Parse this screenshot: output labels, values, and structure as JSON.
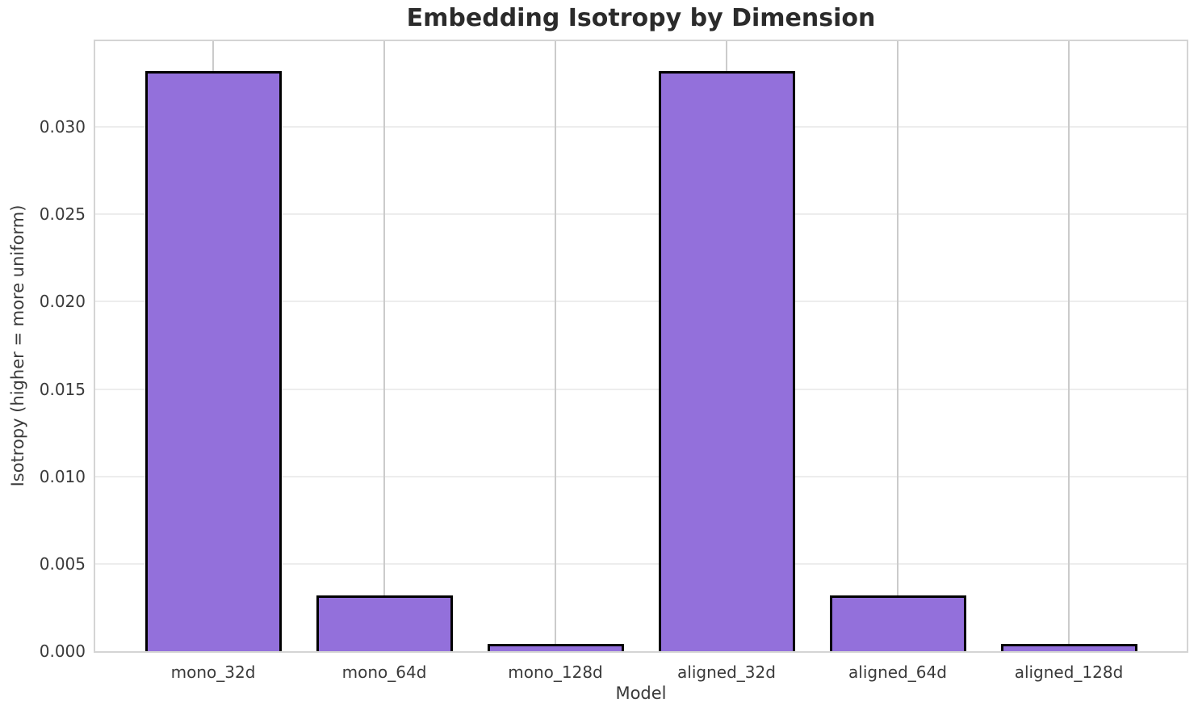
{
  "chart_data": {
    "type": "bar",
    "title": "Embedding Isotropy by Dimension",
    "xlabel": "Model",
    "ylabel": "Isotropy (higher = more uniform)",
    "categories": [
      "mono_32d",
      "mono_64d",
      "mono_128d",
      "aligned_32d",
      "aligned_64d",
      "aligned_128d"
    ],
    "values": [
      0.0332,
      0.0032,
      0.0004,
      0.0332,
      0.0032,
      0.0004
    ],
    "ylim": [
      0,
      0.0349
    ],
    "yticks": [
      0.0,
      0.005,
      0.01,
      0.015,
      0.02,
      0.025,
      0.03
    ],
    "ytick_labels": [
      "0.000",
      "0.005",
      "0.010",
      "0.015",
      "0.020",
      "0.025",
      "0.030"
    ],
    "grid": true,
    "legend": null,
    "colors": {
      "bar_fill": "#9370DB",
      "bar_edge": "#000000",
      "grid_horizontal": "#ededed",
      "grid_vertical": "#cbcbcb",
      "spine": "#d4d4d4",
      "tick_text": "#3a3a3a",
      "title_text": "#2b2b2b",
      "background": "#ffffff"
    }
  }
}
